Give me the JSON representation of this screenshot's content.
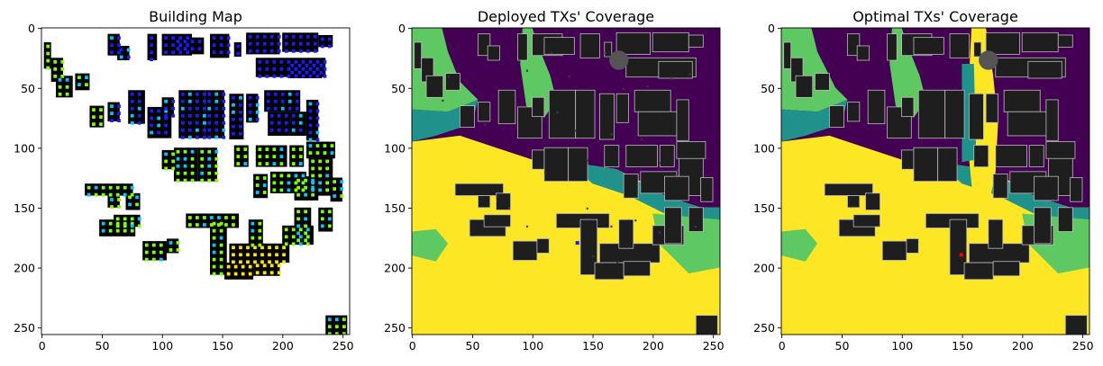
{
  "chart_data": [
    {
      "type": "heatmap",
      "title": "Building Map",
      "xlabel": "",
      "ylabel": "",
      "xlim": [
        0,
        255
      ],
      "ylim": [
        255,
        0
      ],
      "xticks": [
        0,
        50,
        100,
        150,
        200,
        250
      ],
      "yticks": [
        0,
        50,
        100,
        150,
        200,
        250
      ],
      "background": "#ffffff",
      "building_color": "#000000",
      "marker_colors": [
        "#1a1aff",
        "#00c8ff",
        "#7fff00",
        "#ffe500"
      ]
    },
    {
      "type": "heatmap",
      "title": "Deployed TXs' Coverage",
      "xlabel": "",
      "ylabel": "",
      "xlim": [
        0,
        255
      ],
      "ylim": [
        255,
        0
      ],
      "xticks": [
        0,
        50,
        100,
        150,
        200,
        250
      ],
      "yticks": [
        0,
        50,
        100,
        150,
        200,
        250
      ],
      "colormap": [
        "#440154",
        "#21918c",
        "#5ec962",
        "#fde725"
      ],
      "building_color": "#1e1e1e",
      "tx_marker_color": "#1a1aff"
    },
    {
      "type": "heatmap",
      "title": "Optimal TXs' Coverage",
      "xlabel": "",
      "ylabel": "",
      "xlim": [
        0,
        255
      ],
      "ylim": [
        255,
        0
      ],
      "xticks": [
        0,
        50,
        100,
        150,
        200,
        250
      ],
      "yticks": [
        0,
        50,
        100,
        150,
        200,
        250
      ],
      "colormap": [
        "#440154",
        "#21918c",
        "#5ec962",
        "#fde725"
      ],
      "building_color": "#1e1e1e",
      "tx_marker_color": "#ff0000"
    }
  ]
}
